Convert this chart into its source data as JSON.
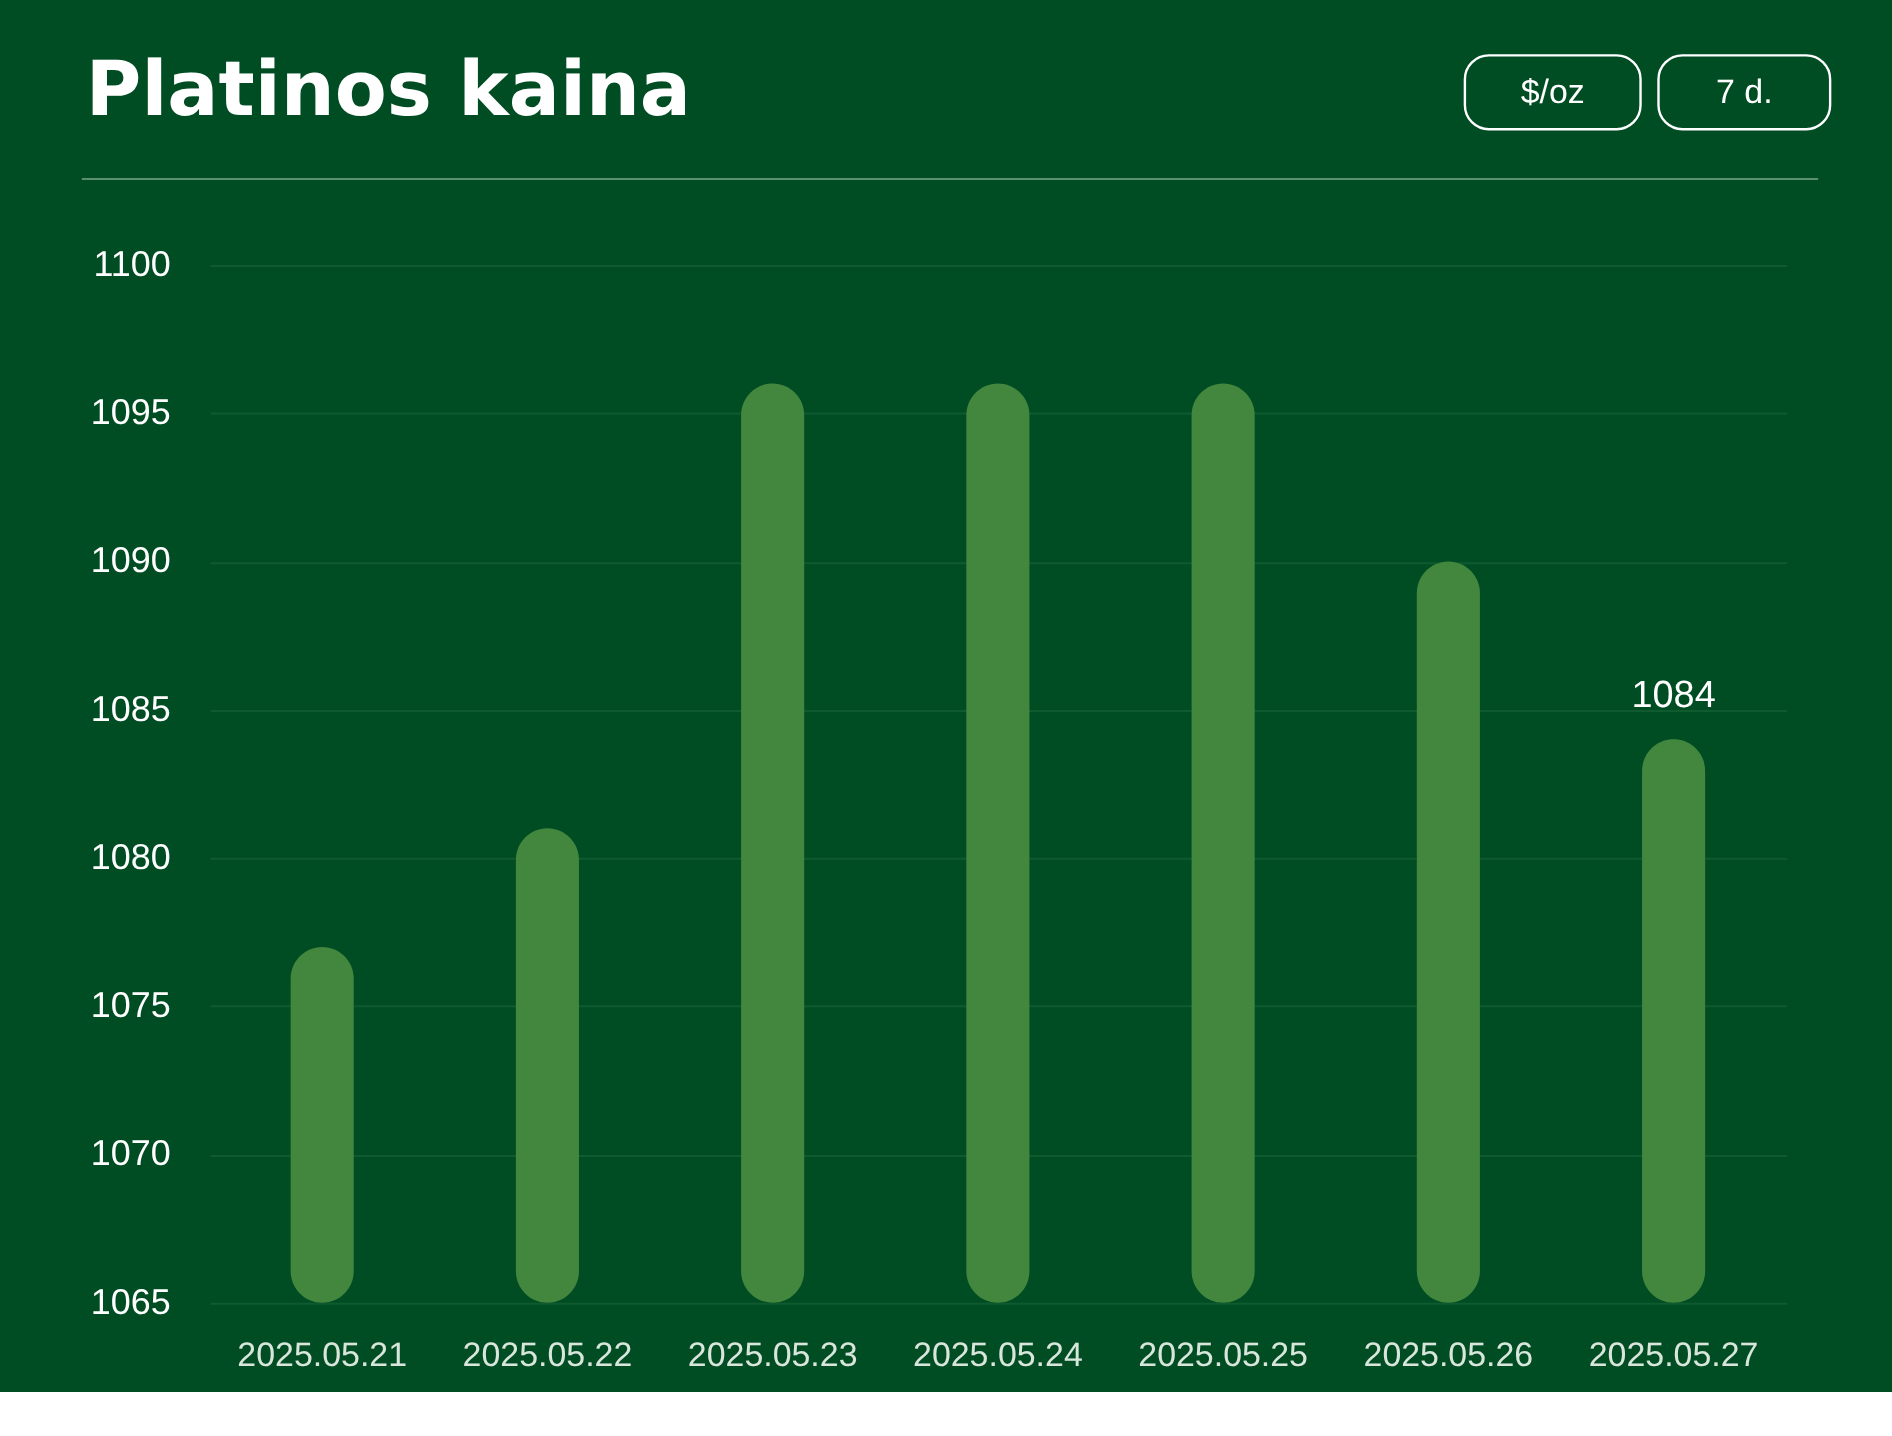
{
  "chart_data": {
    "type": "bar",
    "title": "Platinos kaina",
    "annotations": [
      "$/oz",
      "7 d."
    ],
    "categories": [
      "2025.05.21",
      "2025.05.22",
      "2025.05.23",
      "2025.05.24",
      "2025.05.25",
      "2025.05.26",
      "2025.05.27"
    ],
    "values": [
      1077,
      1081,
      1096,
      1096,
      1096,
      1090,
      1084
    ],
    "value_labels": [
      null,
      null,
      null,
      null,
      null,
      null,
      "1084"
    ],
    "color": "#43873f",
    "ylim": [
      1065,
      1100
    ],
    "yticks": [
      1065,
      1070,
      1075,
      1080,
      1085,
      1090,
      1095,
      1100
    ],
    "grid": "y"
  }
}
